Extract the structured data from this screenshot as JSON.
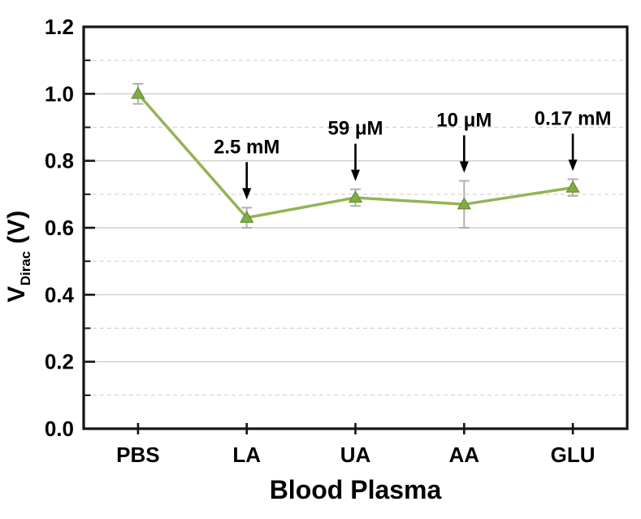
{
  "figure": {
    "background": "#ffffff"
  },
  "chart_data": {
    "type": "line",
    "title": "",
    "xlabel": "Blood Plasma",
    "ylabel": {
      "base": "V",
      "subscript": "Dirac",
      "unit": " (V)"
    },
    "categories": [
      "PBS",
      "LA",
      "UA",
      "AA",
      "GLU"
    ],
    "series": [
      {
        "values": [
          1.0,
          0.63,
          0.69,
          0.67,
          0.72
        ],
        "errors": [
          0.03,
          0.03,
          0.025,
          0.07,
          0.025
        ]
      }
    ],
    "annotations": [
      {
        "category": "LA",
        "label": "2.5 mM"
      },
      {
        "category": "UA",
        "label": "59 μM"
      },
      {
        "category": "AA",
        "label": "10 μM"
      },
      {
        "category": "GLU",
        "label": "0.17 mM"
      }
    ],
    "ylim": [
      0.0,
      1.2
    ],
    "ytick_labels": [
      "0.0",
      "0.2",
      "0.4",
      "0.6",
      "0.8",
      "1.0",
      "1.2"
    ],
    "ytick_step_major": 0.2,
    "ytick_step_minor": 0.1,
    "grid": {
      "solid_at": [
        0.2,
        0.4,
        0.6,
        0.8,
        1.0
      ],
      "dashed_at": [
        0.1,
        0.3,
        0.5,
        0.7,
        0.9,
        1.1
      ]
    },
    "legend": null
  },
  "colors": {
    "line": "#93b455",
    "marker_fill": "#7fad45",
    "marker_edge": "#699536",
    "error_bar": "#b0b0b0",
    "grid_solid": "#c6c6c6",
    "grid_dashed": "#d2d2d2",
    "axis": "#141414",
    "text": "#000000",
    "annotation_arrow": "#000000"
  }
}
